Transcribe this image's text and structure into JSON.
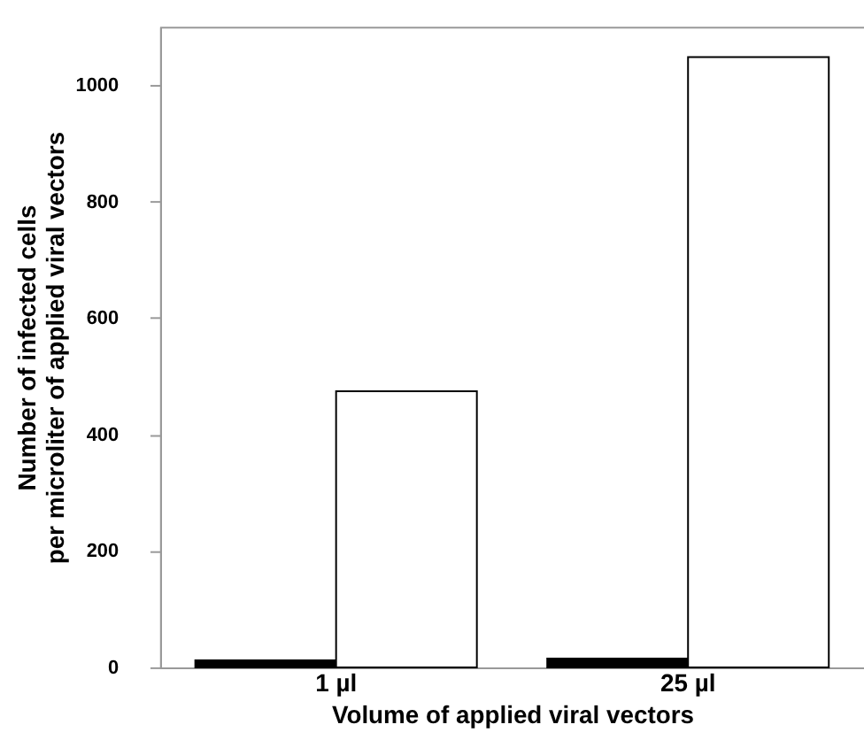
{
  "chart_data": {
    "type": "bar",
    "xlabel": "Volume of applied viral vectors",
    "ylabel": "Number of infected cells\nper microliter of applied viral vectors",
    "categories": [
      "1 µl",
      "25 µl"
    ],
    "series": [
      {
        "color": "#000000",
        "values": [
          12,
          15
        ]
      },
      {
        "color": "#ffffff",
        "values": [
          474,
          1048
        ]
      }
    ],
    "ylim": [
      0,
      1100
    ],
    "yticks": [
      0,
      200,
      400,
      600,
      800,
      1000
    ],
    "grid": false
  }
}
